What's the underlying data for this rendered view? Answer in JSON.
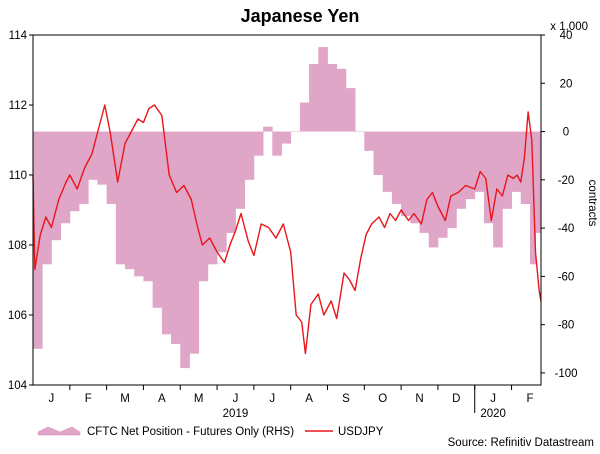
{
  "chart_data": {
    "type": "area+line",
    "title": "Japanese Yen",
    "left_axis": {
      "label": "",
      "ylim": [
        104,
        114
      ],
      "ticks": [
        "104",
        "106",
        "108",
        "110",
        "112",
        "114"
      ]
    },
    "right_axis": {
      "label": "contracts",
      "multiplier": "x 1,000",
      "ylim": [
        -105,
        40
      ],
      "ticks": [
        "-100",
        "-80",
        "-60",
        "-40",
        "-20",
        "0",
        "20",
        "40"
      ]
    },
    "x_axis": {
      "month_labels": [
        "J",
        "F",
        "M",
        "A",
        "M",
        "J",
        "J",
        "A",
        "S",
        "O",
        "N",
        "D",
        "J",
        "F"
      ],
      "year_labels": [
        {
          "label": "2019",
          "month_index": 5.5
        },
        {
          "label": "2020",
          "month_index": 12.5
        }
      ],
      "range_months": [
        0,
        13.8
      ]
    },
    "series": [
      {
        "name": "CFTC Net Position - Futures Only (RHS)",
        "axis": "right",
        "style": "stepped area",
        "color": "#e0a6c8",
        "points": [
          [
            0.0,
            -90
          ],
          [
            0.25,
            -55
          ],
          [
            0.5,
            -45
          ],
          [
            0.75,
            -38
          ],
          [
            1.0,
            -33
          ],
          [
            1.25,
            -30
          ],
          [
            1.5,
            -20
          ],
          [
            1.75,
            -22
          ],
          [
            2.0,
            -30
          ],
          [
            2.25,
            -55
          ],
          [
            2.5,
            -57
          ],
          [
            2.75,
            -60
          ],
          [
            3.0,
            -62
          ],
          [
            3.25,
            -73
          ],
          [
            3.5,
            -84
          ],
          [
            3.75,
            -88
          ],
          [
            4.0,
            -98
          ],
          [
            4.25,
            -92
          ],
          [
            4.5,
            -62
          ],
          [
            4.75,
            -55
          ],
          [
            5.0,
            -50
          ],
          [
            5.25,
            -42
          ],
          [
            5.5,
            -32
          ],
          [
            5.75,
            -20
          ],
          [
            6.0,
            -10
          ],
          [
            6.25,
            2
          ],
          [
            6.5,
            -10
          ],
          [
            6.75,
            -5
          ],
          [
            7.0,
            0
          ],
          [
            7.25,
            12
          ],
          [
            7.5,
            28
          ],
          [
            7.75,
            35
          ],
          [
            8.0,
            28
          ],
          [
            8.25,
            26
          ],
          [
            8.5,
            18
          ],
          [
            8.75,
            0
          ],
          [
            9.0,
            -8
          ],
          [
            9.25,
            -18
          ],
          [
            9.5,
            -25
          ],
          [
            9.75,
            -30
          ],
          [
            10.0,
            -35
          ],
          [
            10.25,
            -38
          ],
          [
            10.5,
            -42
          ],
          [
            10.75,
            -48
          ],
          [
            11.0,
            -44
          ],
          [
            11.25,
            -40
          ],
          [
            11.5,
            -32
          ],
          [
            11.75,
            -28
          ],
          [
            12.0,
            -25
          ],
          [
            12.25,
            -38
          ],
          [
            12.5,
            -48
          ],
          [
            12.75,
            -32
          ],
          [
            13.0,
            -25
          ],
          [
            13.25,
            -30
          ],
          [
            13.5,
            -55
          ],
          [
            13.65,
            -42
          ],
          [
            13.8,
            -42
          ]
        ]
      },
      {
        "name": "USDJPY",
        "axis": "left",
        "style": "line",
        "color": "#e8151b",
        "points": [
          [
            0.0,
            110.0
          ],
          [
            0.05,
            107.3
          ],
          [
            0.2,
            108.3
          ],
          [
            0.35,
            108.8
          ],
          [
            0.5,
            108.5
          ],
          [
            0.7,
            109.3
          ],
          [
            0.9,
            109.8
          ],
          [
            1.0,
            110.0
          ],
          [
            1.2,
            109.6
          ],
          [
            1.4,
            110.2
          ],
          [
            1.6,
            110.6
          ],
          [
            1.8,
            111.4
          ],
          [
            1.95,
            112.0
          ],
          [
            2.1,
            111.2
          ],
          [
            2.3,
            109.8
          ],
          [
            2.5,
            110.9
          ],
          [
            2.7,
            111.3
          ],
          [
            2.85,
            111.6
          ],
          [
            3.0,
            111.5
          ],
          [
            3.15,
            111.9
          ],
          [
            3.3,
            112.0
          ],
          [
            3.5,
            111.7
          ],
          [
            3.7,
            110.0
          ],
          [
            3.9,
            109.5
          ],
          [
            4.1,
            109.7
          ],
          [
            4.3,
            109.3
          ],
          [
            4.45,
            108.6
          ],
          [
            4.6,
            108.0
          ],
          [
            4.8,
            108.2
          ],
          [
            5.0,
            107.8
          ],
          [
            5.2,
            107.5
          ],
          [
            5.35,
            108.0
          ],
          [
            5.5,
            108.4
          ],
          [
            5.65,
            108.9
          ],
          [
            5.85,
            108.1
          ],
          [
            6.0,
            107.7
          ],
          [
            6.2,
            108.6
          ],
          [
            6.4,
            108.5
          ],
          [
            6.6,
            108.2
          ],
          [
            6.8,
            108.6
          ],
          [
            7.0,
            107.8
          ],
          [
            7.15,
            106.0
          ],
          [
            7.3,
            105.8
          ],
          [
            7.4,
            104.9
          ],
          [
            7.55,
            106.3
          ],
          [
            7.75,
            106.6
          ],
          [
            7.9,
            106.0
          ],
          [
            8.1,
            106.4
          ],
          [
            8.25,
            105.9
          ],
          [
            8.45,
            107.2
          ],
          [
            8.6,
            107.0
          ],
          [
            8.75,
            106.7
          ],
          [
            8.9,
            107.6
          ],
          [
            9.05,
            108.3
          ],
          [
            9.2,
            108.6
          ],
          [
            9.4,
            108.8
          ],
          [
            9.55,
            108.5
          ],
          [
            9.7,
            108.9
          ],
          [
            9.85,
            108.7
          ],
          [
            10.0,
            109.0
          ],
          [
            10.2,
            108.7
          ],
          [
            10.35,
            108.9
          ],
          [
            10.55,
            108.6
          ],
          [
            10.7,
            109.3
          ],
          [
            10.85,
            109.5
          ],
          [
            11.0,
            109.1
          ],
          [
            11.2,
            108.7
          ],
          [
            11.35,
            109.4
          ],
          [
            11.55,
            109.5
          ],
          [
            11.75,
            109.7
          ],
          [
            12.0,
            109.6
          ],
          [
            12.15,
            110.1
          ],
          [
            12.3,
            109.9
          ],
          [
            12.45,
            108.7
          ],
          [
            12.6,
            109.6
          ],
          [
            12.75,
            109.4
          ],
          [
            12.9,
            110.0
          ],
          [
            13.05,
            109.9
          ],
          [
            13.15,
            110.0
          ],
          [
            13.25,
            109.8
          ],
          [
            13.35,
            110.5
          ],
          [
            13.45,
            111.8
          ],
          [
            13.55,
            111.0
          ],
          [
            13.65,
            107.8
          ],
          [
            13.75,
            106.7
          ],
          [
            13.8,
            106.4
          ]
        ]
      }
    ],
    "legend": {
      "position": "bottom-left",
      "items": [
        "CFTC Net Position - Futures Only (RHS)",
        "USDJPY"
      ]
    },
    "source": "Source: Refinitiv Datastream"
  }
}
